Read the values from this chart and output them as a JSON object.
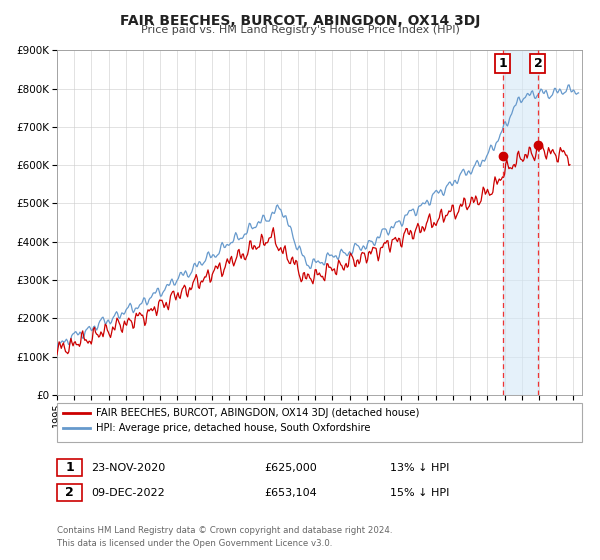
{
  "title": "FAIR BEECHES, BURCOT, ABINGDON, OX14 3DJ",
  "subtitle": "Price paid vs. HM Land Registry's House Price Index (HPI)",
  "ylim": [
    0,
    900000
  ],
  "xlim_start": 1995.0,
  "xlim_end": 2025.5,
  "red_color": "#cc0000",
  "blue_color": "#6699cc",
  "marker1_date": 2020.9,
  "marker1_price": 625000,
  "marker2_date": 2022.94,
  "marker2_price": 653104,
  "marker1_label": "23-NOV-2020",
  "marker1_amount": "£625,000",
  "marker1_pct": "13% ↓ HPI",
  "marker2_label": "09-DEC-2022",
  "marker2_amount": "£653,104",
  "marker2_pct": "15% ↓ HPI",
  "legend_line1": "FAIR BEECHES, BURCOT, ABINGDON, OX14 3DJ (detached house)",
  "legend_line2": "HPI: Average price, detached house, South Oxfordshire",
  "footer1": "Contains HM Land Registry data © Crown copyright and database right 2024.",
  "footer2": "This data is licensed under the Open Government Licence v3.0.",
  "ytick_labels": [
    "£0",
    "£100K",
    "£200K",
    "£300K",
    "£400K",
    "£500K",
    "£600K",
    "£700K",
    "£800K",
    "£900K"
  ],
  "ytick_values": [
    0,
    100000,
    200000,
    300000,
    400000,
    500000,
    600000,
    700000,
    800000,
    900000
  ]
}
